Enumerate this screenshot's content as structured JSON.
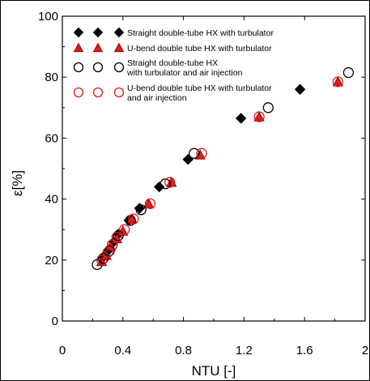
{
  "chart_data": {
    "type": "scatter",
    "xlabel": "NTU [-]",
    "ylabel": "ε[%]",
    "xlim": [
      0,
      2
    ],
    "ylim": [
      0,
      100
    ],
    "x_ticks": [
      "0",
      "0.4",
      "0.8",
      "1.2",
      "1.6",
      "2"
    ],
    "y_ticks": [
      "0",
      "20",
      "40",
      "60",
      "80",
      "100"
    ],
    "x_tick_values": [
      0,
      0.4,
      0.8,
      1.2,
      1.6,
      2.0
    ],
    "y_tick_values": [
      0,
      20,
      40,
      60,
      80,
      100
    ],
    "legend_position": "top-left",
    "series": [
      {
        "name": "Straight double-tube HX with turbulator",
        "name_lines": [
          "Straight double-tube HX with turbulator"
        ],
        "marker": "diamond-filled",
        "color": "#000000",
        "points": [
          [
            0.27,
            21.0
          ],
          [
            0.31,
            23.5
          ],
          [
            0.34,
            26.0
          ],
          [
            0.37,
            28.5
          ],
          [
            0.44,
            33.0
          ],
          [
            0.51,
            37.0
          ],
          [
            0.64,
            44.0
          ],
          [
            0.83,
            53.0
          ],
          [
            1.18,
            66.5
          ],
          [
            1.57,
            76.0
          ]
        ]
      },
      {
        "name": "U-bend double tube HX with turbulator",
        "name_lines": [
          "U-bend double tube HX with turbulator"
        ],
        "marker": "triangle-filled",
        "color": "#e31a1c",
        "points": [
          [
            0.26,
            19.5
          ],
          [
            0.29,
            21.5
          ],
          [
            0.32,
            24.5
          ],
          [
            0.36,
            27.0
          ],
          [
            0.4,
            29.5
          ],
          [
            0.46,
            33.5
          ],
          [
            0.57,
            38.5
          ],
          [
            0.72,
            45.5
          ],
          [
            0.91,
            54.5
          ],
          [
            1.3,
            67.0
          ],
          [
            1.82,
            78.5
          ]
        ]
      },
      {
        "name": "Straight double-tube HX with turbulator and air injection",
        "name_lines": [
          "Straight double-tube HX",
          "with turbulator and air injection"
        ],
        "marker": "circle-open",
        "color": "#000000",
        "points": [
          [
            0.23,
            18.5
          ],
          [
            0.27,
            20.5
          ],
          [
            0.31,
            23.0
          ],
          [
            0.33,
            25.0
          ],
          [
            0.37,
            28.0
          ],
          [
            0.45,
            33.0
          ],
          [
            0.52,
            36.5
          ],
          [
            0.68,
            45.0
          ],
          [
            0.87,
            55.0
          ],
          [
            1.36,
            70.0
          ],
          [
            1.89,
            81.5
          ]
        ]
      },
      {
        "name": "U-bend double tube HX with turbulator and air injection",
        "name_lines": [
          "U-bend double tube HX with turbulator",
          "and air injection"
        ],
        "marker": "circle-open",
        "color": "#e31a1c",
        "points": [
          [
            0.26,
            20.0
          ],
          [
            0.3,
            22.5
          ],
          [
            0.33,
            25.0
          ],
          [
            0.36,
            27.5
          ],
          [
            0.41,
            30.0
          ],
          [
            0.47,
            33.5
          ],
          [
            0.58,
            38.5
          ],
          [
            0.71,
            45.5
          ],
          [
            0.92,
            55.0
          ],
          [
            1.3,
            67.0
          ],
          [
            1.82,
            78.5
          ]
        ]
      }
    ]
  }
}
